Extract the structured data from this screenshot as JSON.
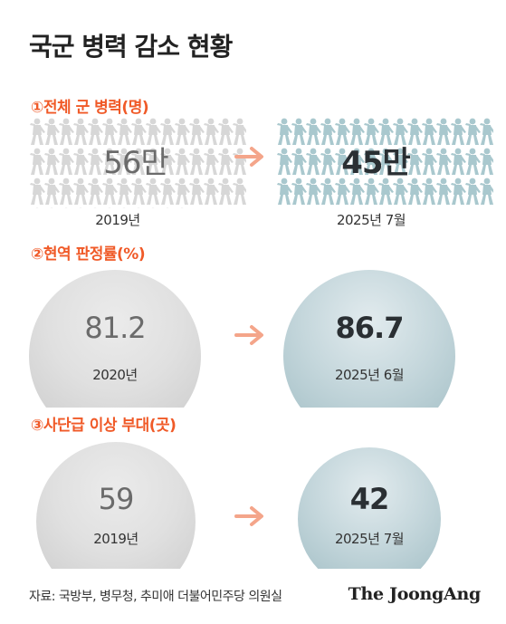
{
  "title": "국군 병력 감소 현황",
  "colors": {
    "accent": "#f05a28",
    "arrow": "#f4a58a",
    "old": "#d7d7d7",
    "new": "#a9c8ce"
  },
  "chart_data": [
    {
      "type": "pictogram",
      "title": "①전체 군 병력(명)",
      "categories": [
        "2019년",
        "2025년 7월"
      ],
      "values": [
        560000,
        450000
      ],
      "value_labels": [
        "56만",
        "45만"
      ]
    },
    {
      "type": "bubble",
      "title": "②현역 판정률(%)",
      "categories": [
        "2020년",
        "2025년 6월"
      ],
      "values": [
        81.2,
        86.7
      ],
      "value_labels": [
        "81.2",
        "86.7"
      ]
    },
    {
      "type": "bubble",
      "title": "③사단급 이상 부대(곳)",
      "categories": [
        "2019년",
        "2025년 7월"
      ],
      "values": [
        59,
        42
      ],
      "value_labels": [
        "59",
        "42"
      ]
    }
  ],
  "footer": "자료: 국방부, 병무청, 추미애 더불어민주당 의원실",
  "logo": "The JoongAng"
}
